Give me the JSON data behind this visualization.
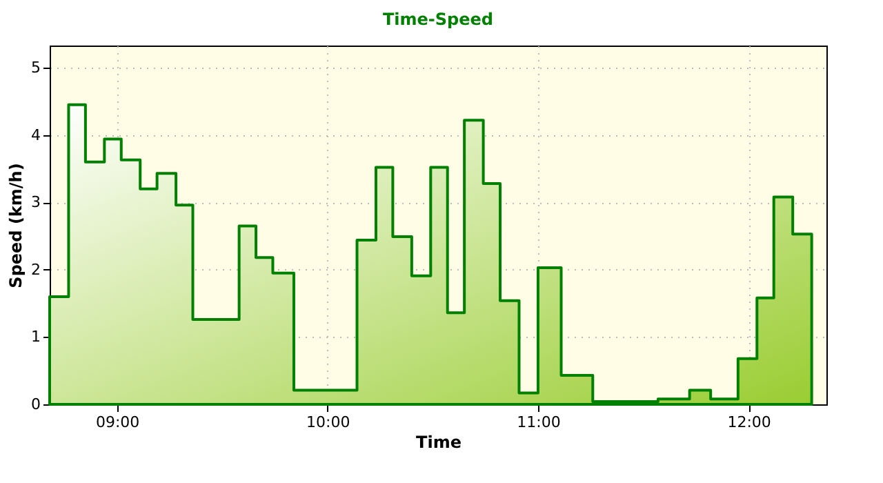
{
  "chart_data": {
    "type": "step",
    "title": "Time-Speed",
    "xlabel": "Time",
    "ylabel": "Speed (km/h)",
    "x": [
      8.68,
      8.77,
      8.85,
      8.94,
      9.02,
      9.11,
      9.19,
      9.28,
      9.36,
      9.58,
      9.66,
      9.74,
      9.84,
      10.14,
      10.23,
      10.31,
      10.4,
      10.49,
      10.57,
      10.65,
      10.74,
      10.82,
      10.91,
      11.0,
      11.11,
      11.26,
      11.57,
      11.72,
      11.82,
      11.95,
      12.04,
      12.12,
      12.21,
      12.3
    ],
    "series": [
      {
        "type": "area",
        "color": "#008000",
        "values": [
          1.6,
          4.45,
          3.6,
          3.94,
          3.63,
          3.2,
          3.43,
          2.96,
          1.26,
          2.65,
          2.18,
          1.95,
          0.21,
          2.44,
          3.52,
          2.49,
          1.91,
          3.52,
          1.36,
          4.22,
          3.28,
          1.54,
          0.17,
          2.03,
          0.43,
          0.04,
          0.08,
          0.21,
          0.08,
          0.68,
          1.58,
          3.08,
          2.53,
          2.53
        ]
      }
    ],
    "xlim": [
      8.68,
      12.37
    ],
    "ylim": [
      0,
      5.33
    ],
    "xticks": [
      {
        "value": 9,
        "label": "09:00"
      },
      {
        "value": 10,
        "label": "10:00"
      },
      {
        "value": 11,
        "label": "11:00"
      },
      {
        "value": 12,
        "label": "12:00"
      }
    ],
    "yticks": [
      0,
      1,
      2,
      3,
      4,
      5
    ],
    "grid": true
  }
}
